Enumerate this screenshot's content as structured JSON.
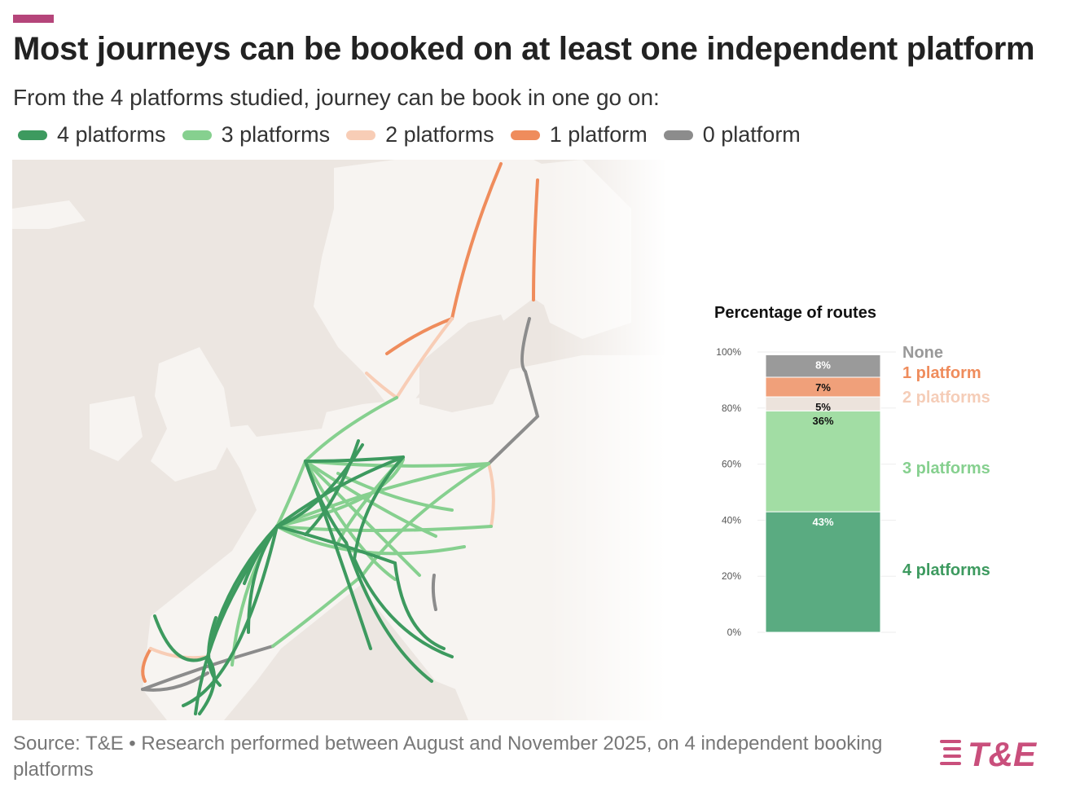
{
  "header": {
    "title": "Most journeys can be booked on at least one independent platform",
    "subtitle": "From the 4 platforms studied, journey can be book in one go on:"
  },
  "legend": [
    {
      "label": "4 platforms",
      "color": "#3d9a5f"
    },
    {
      "label": "3 platforms",
      "color": "#86d08f"
    },
    {
      "label": "2 platforms",
      "color": "#f8cdb6"
    },
    {
      "label": "1 platform",
      "color": "#ef8c5c"
    },
    {
      "label": "0 platform",
      "color": "#8c8c8c"
    }
  ],
  "chart_data": [
    {
      "type": "map",
      "legend_placement": "top"
    },
    {
      "type": "bar",
      "stacked": true,
      "title": "Percentage of routes",
      "ylim": [
        0,
        100
      ],
      "yticks": [
        "0%",
        "20%",
        "40%",
        "60%",
        "80%",
        "100%"
      ],
      "segments": [
        {
          "name": "4 platforms",
          "value": 43,
          "label": "43%",
          "color": "#5aab81",
          "text_color": "#ffffff",
          "name_color": "#3d9a5f"
        },
        {
          "name": "3 platforms",
          "value": 36,
          "label": "36%",
          "color": "#a2dda4",
          "text_color": "#111111",
          "name_color": "#86d08f"
        },
        {
          "name": "2 platforms",
          "value": 5,
          "label": "5%",
          "color": "#ece3dc",
          "text_color": "#111111",
          "name_color": "#f5cdb8"
        },
        {
          "name": "1 platform",
          "value": 7,
          "label": "7%",
          "color": "#f0a07a",
          "text_color": "#111111",
          "name_color": "#ef8c5c"
        },
        {
          "name": "None",
          "value": 8,
          "label": "8%",
          "color": "#9a9a9a",
          "text_color": "#ffffff",
          "name_color": "#999999"
        }
      ]
    }
  ],
  "footer": {
    "source": "Source: T&E • Research performed between August and November 2025, on 4 independent booking platforms",
    "logo_text": "T&E"
  }
}
